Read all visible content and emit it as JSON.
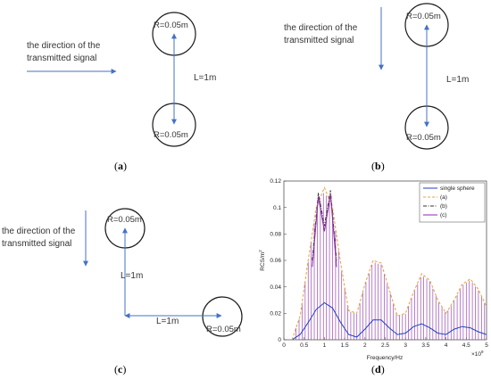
{
  "panels": {
    "a": {
      "caption_open": "(",
      "caption_letter": "a",
      "caption_close": ")",
      "direction_line1": "the direction of the",
      "direction_line2": "transmitted signal",
      "top_radius": "R=0.05m",
      "bottom_radius": "R=0.05m",
      "distance": "L=1m"
    },
    "b": {
      "caption_open": "(",
      "caption_letter": "b",
      "caption_close": ")",
      "direction_line1": "the direction of the",
      "direction_line2": "transmitted signal",
      "top_radius": "R=0.05m",
      "bottom_radius": "R=0.05m",
      "distance": "L=1m"
    },
    "c": {
      "caption_open": "(",
      "caption_letter": "c",
      "caption_close": ")",
      "direction_line1": "the direction of the",
      "direction_line2": "transmitted signal",
      "top_radius": "R=0.05m",
      "right_radius": "R=0.05m",
      "vertical_distance": "L=1m",
      "horizontal_distance": "L=1m"
    },
    "d": {
      "caption_open": "(",
      "caption_letter": "d",
      "caption_close": ")"
    }
  },
  "colors": {
    "arrow": "#4472c4",
    "single_sphere": "#1f3fbf",
    "a": "#e8a040",
    "b": "#333333",
    "c": "#8a2aa8"
  },
  "chart_data": {
    "type": "line",
    "xlabel": "Frequency/Hz",
    "ylabel": "RCS/m",
    "ylabel_sup": "2",
    "x_multiplier": "×10",
    "x_multiplier_exp": "9",
    "xlim": [
      0,
      5
    ],
    "ylim": [
      0,
      0.12
    ],
    "x_ticks": [
      "0",
      "0.5",
      "1",
      "1.5",
      "2",
      "2.5",
      "3",
      "3.5",
      "4",
      "4.5",
      "5"
    ],
    "y_ticks": [
      "0",
      "0.02",
      "0.04",
      "0.06",
      "0.08",
      "0.1",
      "0.12"
    ],
    "legend_position": "top-right",
    "series": [
      {
        "name": "single sphere",
        "style": "solid",
        "x": [
          0.2,
          0.4,
          0.6,
          0.8,
          1.0,
          1.2,
          1.4,
          1.6,
          1.8,
          2.0,
          2.2,
          2.4,
          2.6,
          2.8,
          3.0,
          3.2,
          3.4,
          3.6,
          3.8,
          4.0,
          4.2,
          4.4,
          4.6,
          4.8,
          5.0
        ],
        "y": [
          0.0,
          0.004,
          0.013,
          0.023,
          0.028,
          0.024,
          0.013,
          0.004,
          0.002,
          0.008,
          0.015,
          0.015,
          0.009,
          0.004,
          0.005,
          0.01,
          0.012,
          0.009,
          0.005,
          0.004,
          0.008,
          0.01,
          0.009,
          0.006,
          0.004
        ]
      },
      {
        "name": "(a)",
        "style": "dashed",
        "x": [
          0.2,
          0.4,
          0.6,
          0.8,
          1.0,
          1.2,
          1.4,
          1.6,
          1.8,
          2.0,
          2.2,
          2.4,
          2.6,
          2.8,
          3.0,
          3.2,
          3.4,
          3.6,
          3.8,
          4.0,
          4.2,
          4.4,
          4.6,
          4.8,
          5.0
        ],
        "y": [
          0.0,
          0.018,
          0.06,
          0.1,
          0.115,
          0.1,
          0.058,
          0.022,
          0.02,
          0.042,
          0.06,
          0.058,
          0.038,
          0.018,
          0.02,
          0.036,
          0.05,
          0.045,
          0.03,
          0.02,
          0.03,
          0.042,
          0.046,
          0.038,
          0.025
        ]
      },
      {
        "name": "(b)",
        "style": "dash-dot",
        "x": [
          0.7,
          0.85,
          1.0,
          1.15,
          1.3
        ],
        "y": [
          0.06,
          0.111,
          0.086,
          0.113,
          0.06
        ]
      },
      {
        "name": "(c)",
        "style": "solid",
        "x": [
          0.7,
          0.85,
          1.0,
          1.15,
          1.3
        ],
        "y": [
          0.055,
          0.108,
          0.082,
          0.11,
          0.055
        ]
      }
    ]
  }
}
